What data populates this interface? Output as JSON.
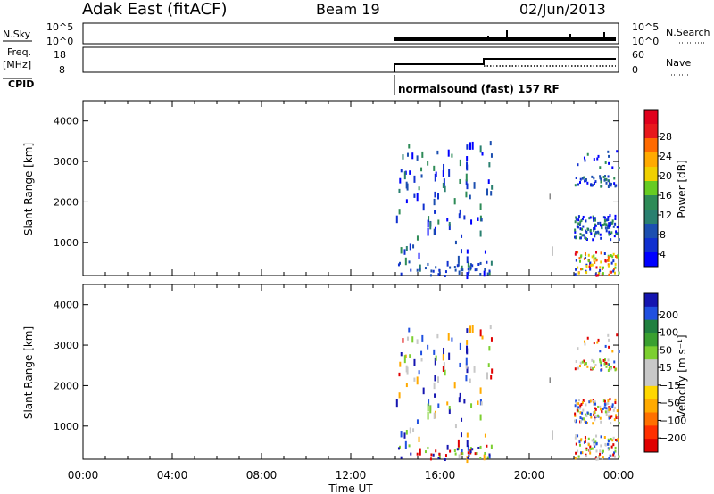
{
  "header": {
    "station": "Adak East (fitACF)",
    "beam": "Beam 19",
    "date": "02/Jun/2013"
  },
  "panels": {
    "nsky_label": "N.Sky",
    "nsky_ticks": [
      "10^5",
      "10^0"
    ],
    "nsearch_label": "N.Search",
    "nsearch_ticks": [
      "10^5",
      "10^0"
    ],
    "freq_label": "Freq.",
    "freq_unit": "[MHz]",
    "freq_ticks": [
      "18",
      "8"
    ],
    "nave_label": "Nave",
    "nave_ticks": [
      "60",
      "0"
    ],
    "cpid_label": "CPID",
    "cpid_text": "normalsound (fast) 157 RF"
  },
  "chart_data": [
    {
      "type": "heatmap",
      "name": "power",
      "xlabel": "",
      "ylabel": "Slant Range [km]",
      "yticks": [
        "4000",
        "3000",
        "2000",
        "1000"
      ],
      "ylim": [
        180,
        4500
      ],
      "colorbar_label": "Power [dB]",
      "colorbar_ticks": [
        "28",
        "24",
        "20",
        "16",
        "12",
        "8",
        "4"
      ],
      "colorbar_colors": [
        "#e0001c",
        "#e8181c",
        "#ff6a00",
        "#ffaa00",
        "#f0d000",
        "#66cc22",
        "#2e8b57",
        "#2a8070",
        "#1c4fb0",
        "#1030d0",
        "#0000ff"
      ]
    },
    {
      "type": "heatmap",
      "name": "velocity",
      "xlabel": "Time UT",
      "ylabel": "Slant Range [km]",
      "xticks": [
        "00:00",
        "04:00",
        "08:00",
        "12:00",
        "16:00",
        "20:00",
        "00:00"
      ],
      "xlim": [
        0,
        24
      ],
      "yticks": [
        "4000",
        "3000",
        "2000",
        "1000"
      ],
      "ylim": [
        180,
        4500
      ],
      "colorbar_label": "Velocity [m s⁻¹]",
      "colorbar_ticks": [
        "200",
        "100",
        "50",
        "15",
        "−15",
        "−50",
        "−100",
        "−200"
      ],
      "colorbar_colors": [
        "#1515b0",
        "#2050e0",
        "#208040",
        "#3aa030",
        "#7ccf30",
        "#c8c8c8",
        "#c8c8c8",
        "#ffd700",
        "#ffaa00",
        "#ff7000",
        "#ff3000",
        "#e00000"
      ]
    }
  ]
}
